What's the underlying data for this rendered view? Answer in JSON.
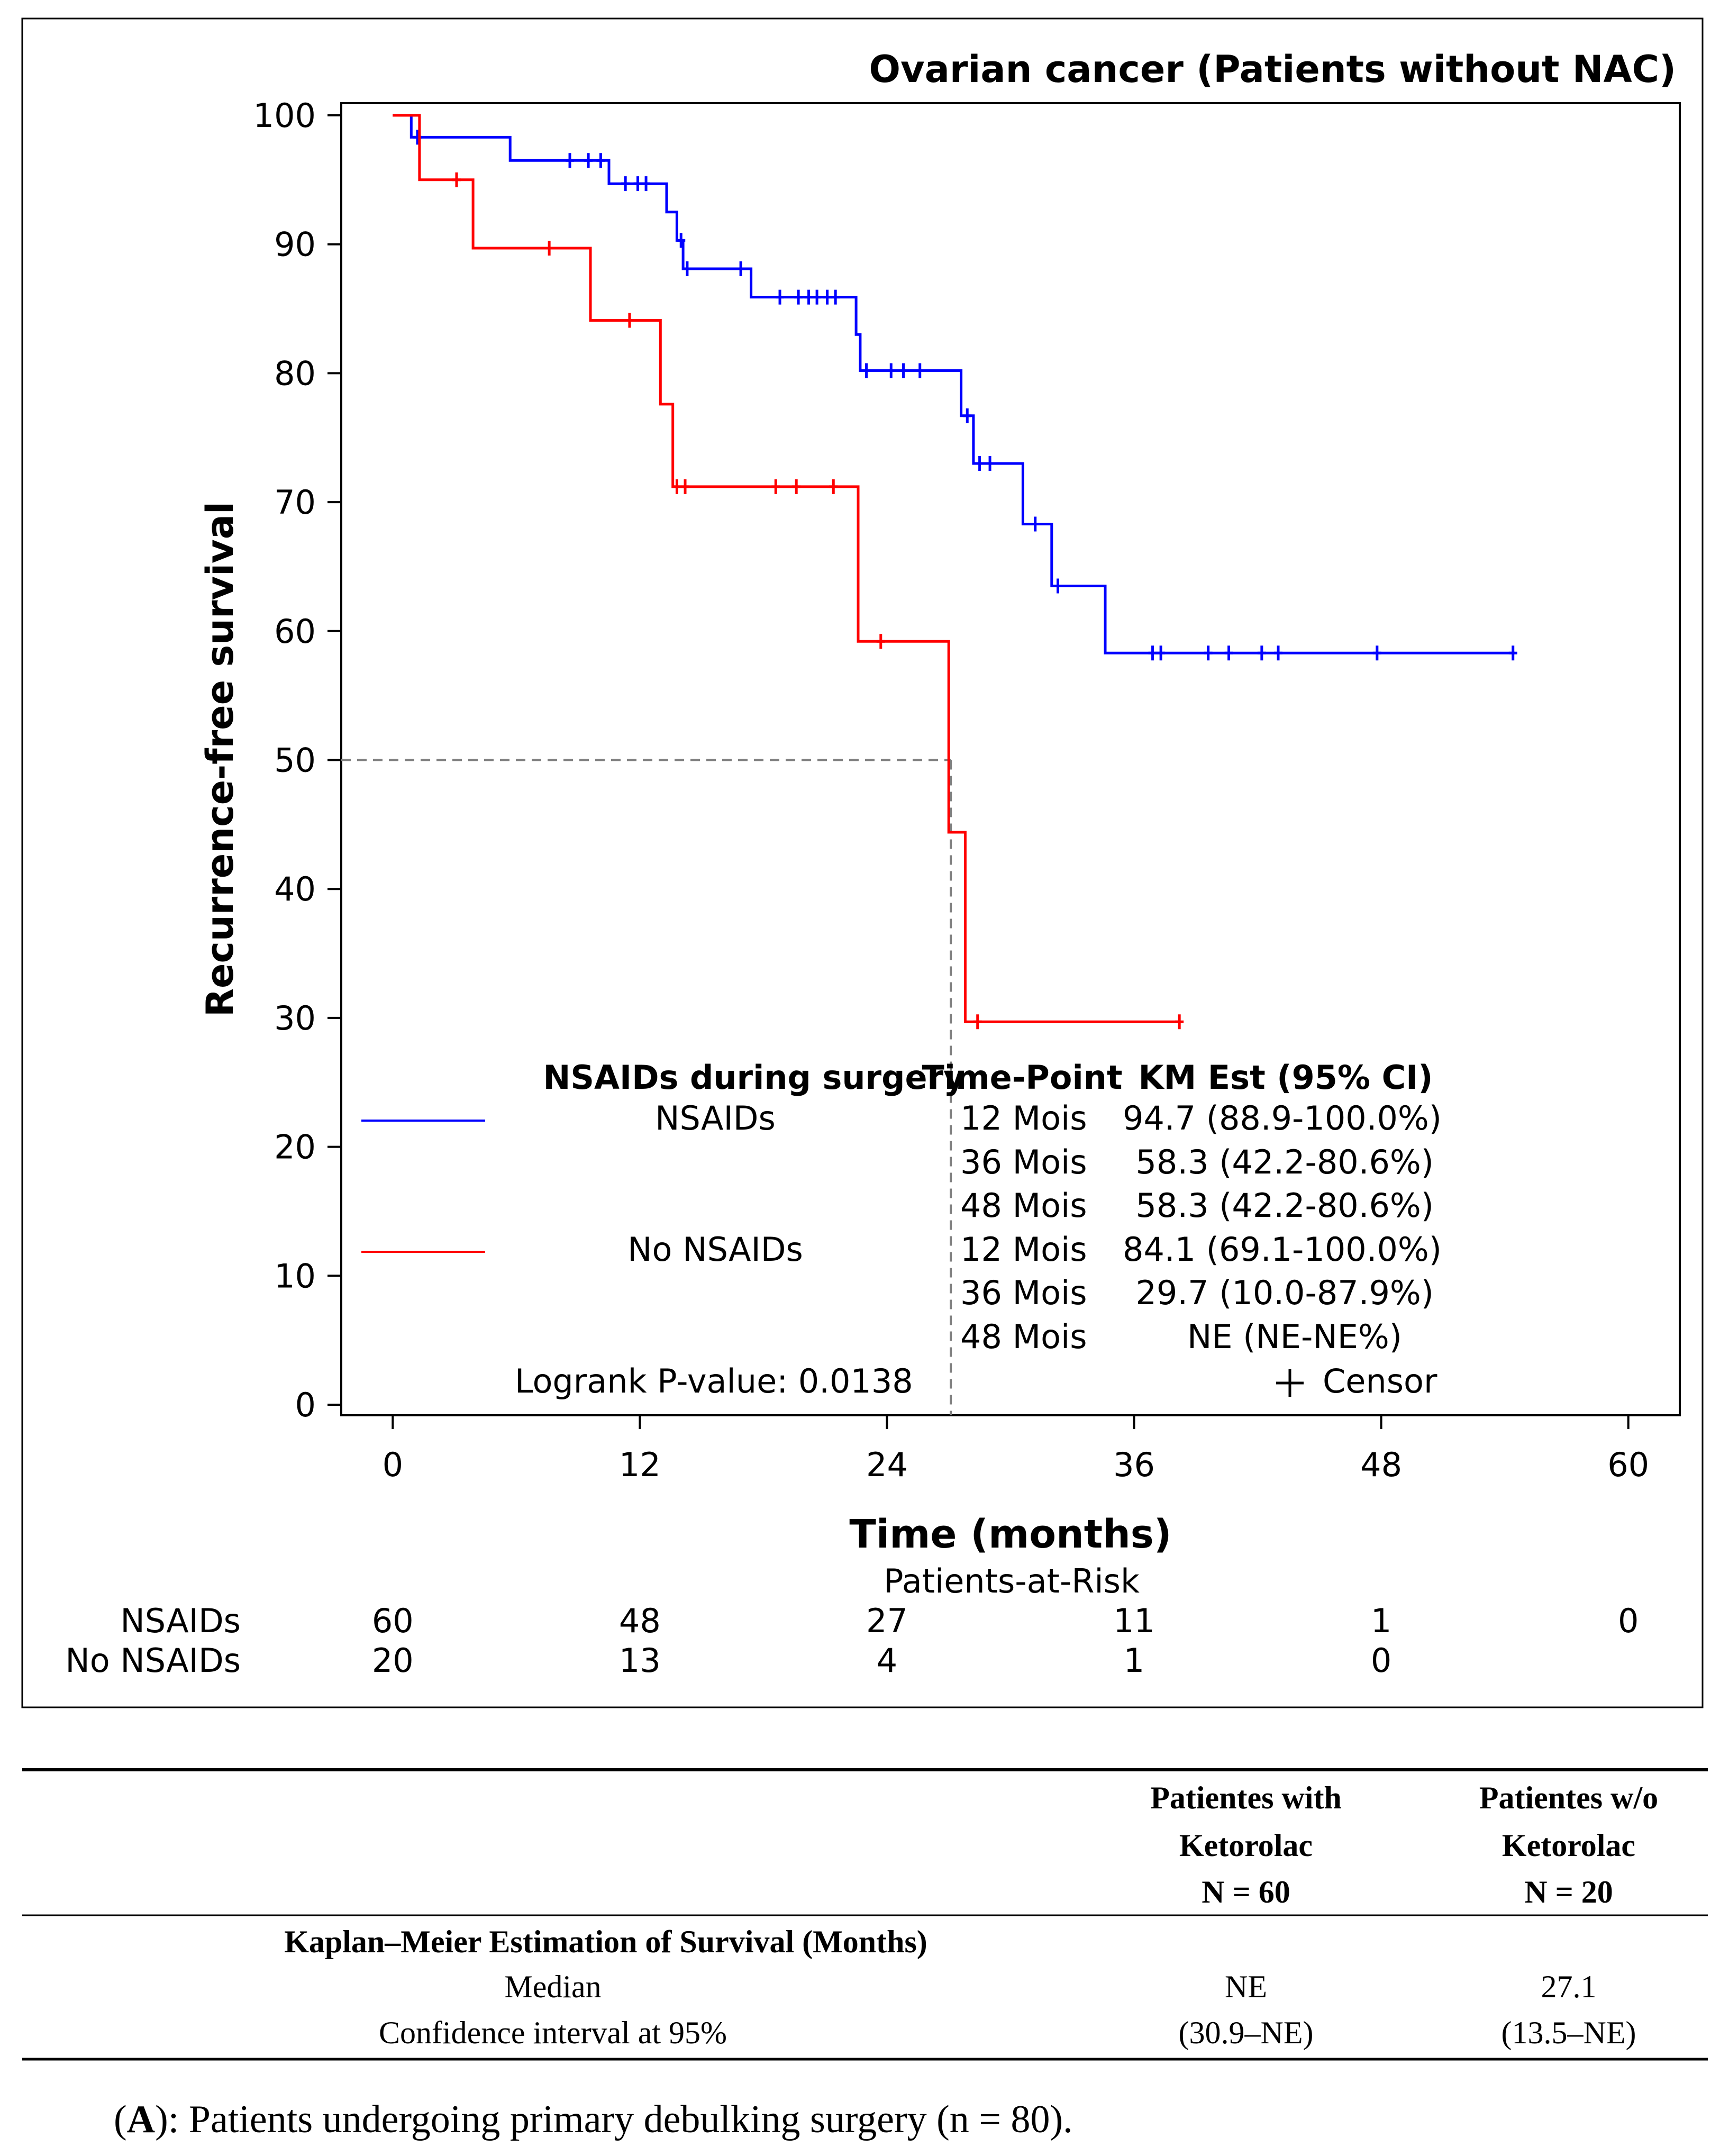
{
  "chart_data": {
    "type": "line",
    "subtype": "kaplan-meier",
    "title": "Ovarian cancer (Patients without NAC)",
    "xlabel": "Time (months)",
    "ylabel": "Recurrence-free survival",
    "xlim": [
      -2.5,
      62.5
    ],
    "ylim": [
      0,
      100
    ],
    "xticks": [
      0,
      12,
      24,
      36,
      48,
      60
    ],
    "yticks": [
      0,
      10,
      20,
      30,
      40,
      50,
      60,
      70,
      80,
      90,
      100
    ],
    "grid": false,
    "colors": {
      "NSAIDs": "#0000ff",
      "No NSAIDs": "#ff0000",
      "median": "#808080",
      "frame": "#000000"
    },
    "median_reference": {
      "y": 50,
      "x": 27.1
    },
    "series": [
      {
        "name": "NSAIDs",
        "color": "#0000ff",
        "steps": [
          [
            0,
            100
          ],
          [
            0.9,
            100
          ],
          [
            0.9,
            98.3
          ],
          [
            5.7,
            98.3
          ],
          [
            5.7,
            96.5
          ],
          [
            10.5,
            96.5
          ],
          [
            10.5,
            94.7
          ],
          [
            13.3,
            94.7
          ],
          [
            13.3,
            92.5
          ],
          [
            13.8,
            92.5
          ],
          [
            13.8,
            90.3
          ],
          [
            14.1,
            90.3
          ],
          [
            14.1,
            88.1
          ],
          [
            17.4,
            88.1
          ],
          [
            17.4,
            85.9
          ],
          [
            22.5,
            85.9
          ],
          [
            22.5,
            83.0
          ],
          [
            22.7,
            83.0
          ],
          [
            22.7,
            80.2
          ],
          [
            27.6,
            80.2
          ],
          [
            27.6,
            76.7
          ],
          [
            28.2,
            76.7
          ],
          [
            28.2,
            73.0
          ],
          [
            30.6,
            73.0
          ],
          [
            30.6,
            68.3
          ],
          [
            32.0,
            68.3
          ],
          [
            32.0,
            63.5
          ],
          [
            34.6,
            63.5
          ],
          [
            34.6,
            58.3
          ],
          [
            54.5,
            58.3
          ]
        ],
        "censors": [
          [
            1.2,
            98.3
          ],
          [
            8.6,
            96.5
          ],
          [
            9.5,
            96.5
          ],
          [
            10.1,
            96.5
          ],
          [
            11.3,
            94.7
          ],
          [
            11.9,
            94.7
          ],
          [
            12.3,
            94.7
          ],
          [
            14.0,
            90.3
          ],
          [
            14.3,
            88.1
          ],
          [
            16.9,
            88.1
          ],
          [
            18.8,
            85.9
          ],
          [
            19.7,
            85.9
          ],
          [
            20.2,
            85.9
          ],
          [
            20.6,
            85.9
          ],
          [
            21.1,
            85.9
          ],
          [
            21.5,
            85.9
          ],
          [
            23.0,
            80.2
          ],
          [
            24.2,
            80.2
          ],
          [
            24.8,
            80.2
          ],
          [
            25.6,
            80.2
          ],
          [
            27.9,
            76.7
          ],
          [
            28.5,
            73.0
          ],
          [
            29.0,
            73.0
          ],
          [
            31.2,
            68.3
          ],
          [
            32.3,
            63.5
          ],
          [
            36.9,
            58.3
          ],
          [
            37.3,
            58.3
          ],
          [
            39.6,
            58.3
          ],
          [
            40.6,
            58.3
          ],
          [
            42.2,
            58.3
          ],
          [
            43.0,
            58.3
          ],
          [
            47.8,
            58.3
          ],
          [
            54.4,
            58.3
          ]
        ],
        "at_risk": [
          60,
          48,
          27,
          11,
          1,
          0
        ]
      },
      {
        "name": "No NSAIDs",
        "color": "#ff0000",
        "steps": [
          [
            0,
            100
          ],
          [
            1.3,
            100
          ],
          [
            1.3,
            95.0
          ],
          [
            3.9,
            95.0
          ],
          [
            3.9,
            89.7
          ],
          [
            9.6,
            89.7
          ],
          [
            9.6,
            84.1
          ],
          [
            13.0,
            84.1
          ],
          [
            13.0,
            77.6
          ],
          [
            13.6,
            77.6
          ],
          [
            13.6,
            71.2
          ],
          [
            22.6,
            71.2
          ],
          [
            22.6,
            59.2
          ],
          [
            27.0,
            59.2
          ],
          [
            27.0,
            44.4
          ],
          [
            27.8,
            44.4
          ],
          [
            27.8,
            29.7
          ],
          [
            38.2,
            29.7
          ]
        ],
        "censors": [
          [
            3.1,
            95.0
          ],
          [
            7.6,
            89.7
          ],
          [
            11.5,
            84.1
          ],
          [
            13.8,
            71.2
          ],
          [
            14.2,
            71.2
          ],
          [
            18.6,
            71.2
          ],
          [
            19.6,
            71.2
          ],
          [
            21.4,
            71.2
          ],
          [
            23.7,
            59.2
          ],
          [
            28.4,
            29.7
          ],
          [
            38.2,
            29.7
          ]
        ],
        "at_risk": [
          20,
          13,
          4,
          1,
          0
        ]
      }
    ]
  },
  "legend": {
    "header_group": "NSAIDs during surgery",
    "header_time": "Time-Point",
    "header_est": "KM Est (95% CI)",
    "rows": [
      {
        "group": "NSAIDs",
        "entries": [
          {
            "time": "12 Mois",
            "est": "94.7 (88.9-100.0%)"
          },
          {
            "time": "36 Mois",
            "est": "58.3 (42.2-80.6%)"
          },
          {
            "time": "48 Mois",
            "est": "58.3 (42.2-80.6%)"
          }
        ]
      },
      {
        "group": "No NSAIDs",
        "entries": [
          {
            "time": "12 Mois",
            "est": "84.1 (69.1-100.0%)"
          },
          {
            "time": "36 Mois",
            "est": "29.7 (10.0-87.9%)"
          },
          {
            "time": "48 Mois",
            "est": "NE (NE-NE%)"
          }
        ]
      }
    ],
    "logrank": "Logrank P-value: 0.0138",
    "censor_label": "Censor"
  },
  "at_risk": {
    "title": "Patients-at-Risk",
    "labels": [
      "NSAIDs",
      "No NSAIDs"
    ]
  },
  "summary_table": {
    "col1_lines": [
      "Patientes with",
      "Ketorolac",
      "N = 60"
    ],
    "col2_lines": [
      "Patientes w/o",
      "Ketorolac",
      "N = 20"
    ],
    "section": "Kaplan–Meier Estimation of Survival (Months)",
    "rows": [
      {
        "label": "Median",
        "v1": "NE",
        "v2": "27.1"
      },
      {
        "label": "Confidence interval at 95%",
        "v1": "(30.9–NE)",
        "v2": "(13.5–NE)"
      }
    ]
  },
  "caption": {
    "bold": "A",
    "prefix": "(",
    "rest": "): Patients undergoing primary debulking surgery (n = 80)."
  }
}
